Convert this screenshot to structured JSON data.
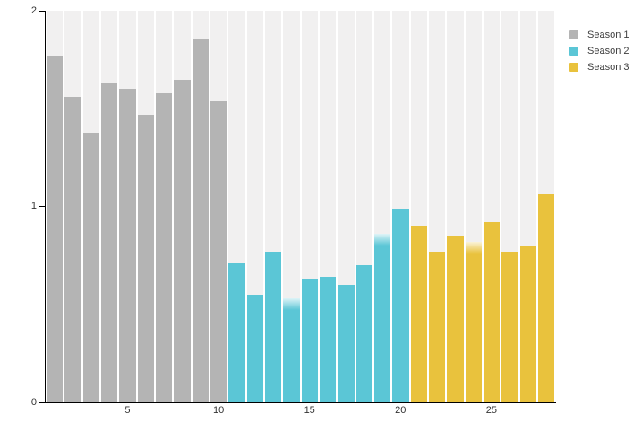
{
  "chart_data": {
    "type": "bar",
    "title": "",
    "xlabel": "",
    "ylabel": "",
    "ylim": [
      0,
      2
    ],
    "yticks": [
      0,
      1,
      2
    ],
    "xticks": [
      5,
      10,
      15,
      20,
      25
    ],
    "grid": false,
    "band_color": "#f1f0f0",
    "axis_color": "#000000",
    "tick_label_color": "#333333",
    "legend_position": "top-right",
    "n_bars": 28,
    "soft_top_bars": [
      14,
      19,
      24
    ],
    "series": [
      {
        "name": "Season 1",
        "color": "#b4b4b4",
        "x": [
          1,
          2,
          3,
          4,
          5,
          6,
          7,
          8,
          9,
          10
        ],
        "values": [
          1.77,
          1.56,
          1.38,
          1.63,
          1.6,
          1.47,
          1.58,
          1.65,
          1.86,
          1.54
        ]
      },
      {
        "name": "Season 2",
        "color": "#5bc6d6",
        "x": [
          11,
          12,
          13,
          14,
          15,
          16,
          17,
          18,
          19,
          20
        ],
        "values": [
          0.71,
          0.55,
          0.77,
          0.53,
          0.63,
          0.64,
          0.6,
          0.7,
          0.86,
          0.99
        ]
      },
      {
        "name": "Season 3",
        "color": "#e9c23d",
        "x": [
          21,
          22,
          23,
          24,
          25,
          26,
          27,
          28
        ],
        "values": [
          0.9,
          0.77,
          0.85,
          0.82,
          0.92,
          0.77,
          0.8,
          1.06
        ]
      }
    ]
  },
  "legend": {
    "items": [
      {
        "label": "Season 1",
        "color": "#b4b4b4"
      },
      {
        "label": "Season 2",
        "color": "#5bc6d6"
      },
      {
        "label": "Season 3",
        "color": "#e9c23d"
      }
    ]
  }
}
